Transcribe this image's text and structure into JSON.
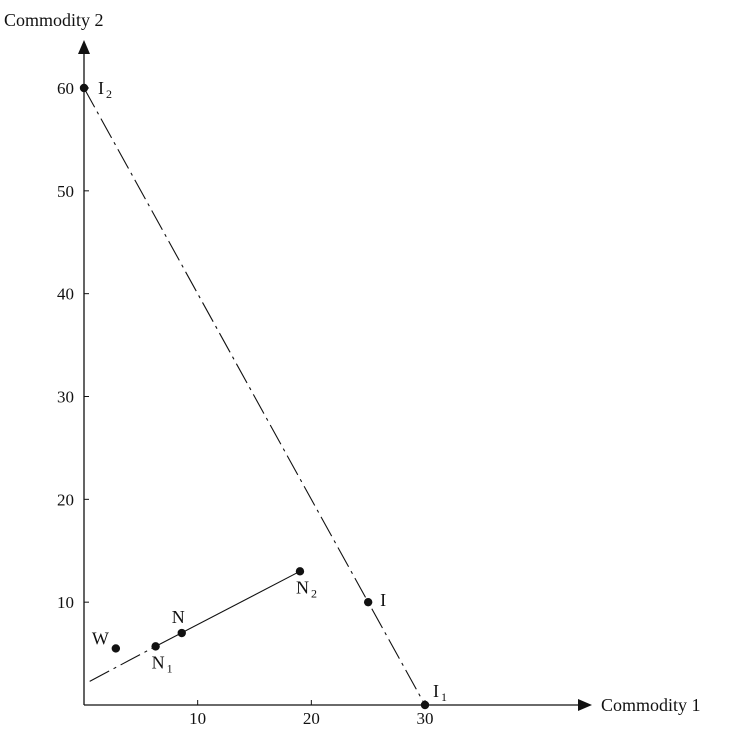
{
  "chart_data": {
    "type": "scatter",
    "title": "",
    "xlabel": "Commodity 1",
    "ylabel": "Commodity 2",
    "xlim": [
      0,
      40
    ],
    "ylim": [
      0,
      65
    ],
    "x_ticks": [
      10,
      20,
      30
    ],
    "y_ticks": [
      10,
      20,
      30,
      40,
      50,
      60
    ],
    "grid": false,
    "points": [
      {
        "id": "I2",
        "label": "I",
        "sub": "2",
        "x": 0,
        "y": 60
      },
      {
        "id": "I1",
        "label": "I",
        "sub": "1",
        "x": 30,
        "y": 0
      },
      {
        "id": "I",
        "label": "I",
        "sub": "",
        "x": 25,
        "y": 10
      },
      {
        "id": "N2",
        "label": "N",
        "sub": "2",
        "x": 19,
        "y": 13
      },
      {
        "id": "N",
        "label": "N",
        "sub": "",
        "x": 8.6,
        "y": 7
      },
      {
        "id": "N1",
        "label": "N",
        "sub": "1",
        "x": 6.3,
        "y": 5.7
      },
      {
        "id": "W",
        "label": "W",
        "sub": "",
        "x": 2.8,
        "y": 5.5
      }
    ],
    "lines": [
      {
        "id": "budget-line",
        "style": "dashed",
        "from": [
          0,
          60
        ],
        "to": [
          30,
          0
        ]
      },
      {
        "id": "n-line",
        "style": "solid",
        "from": [
          6.3,
          5.7
        ],
        "to": [
          19,
          13
        ]
      },
      {
        "id": "n-line-extension",
        "style": "dashed",
        "from": [
          0.5,
          2.3
        ],
        "to": [
          6.3,
          5.7
        ]
      }
    ]
  }
}
